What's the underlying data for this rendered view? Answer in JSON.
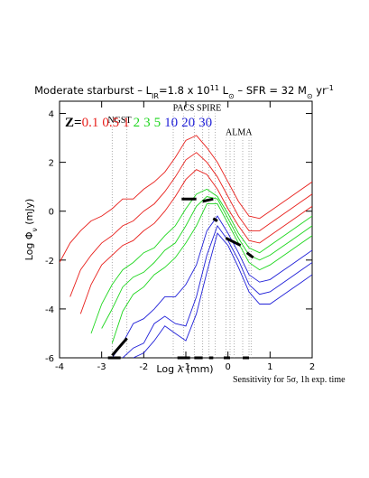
{
  "chart_data": {
    "type": "line",
    "title_parts": [
      {
        "text": "Moderate starburst – L",
        "pos": "base"
      },
      {
        "text": "IR",
        "pos": "sub"
      },
      {
        "text": "=1.8 x 10",
        "pos": "base"
      },
      {
        "text": "11",
        "pos": "sup"
      },
      {
        "text": " L",
        "pos": "base"
      },
      {
        "text": "⊙",
        "pos": "sub"
      },
      {
        "text": " – SFR = 32 M",
        "pos": "base"
      },
      {
        "text": "⊙",
        "pos": "sub"
      },
      {
        "text": " yr",
        "pos": "base"
      },
      {
        "text": "-1",
        "pos": "sup"
      }
    ],
    "ylabel_parts": [
      {
        "text": "Log Φ",
        "pos": "base"
      },
      {
        "text": "ν",
        "pos": "sub"
      },
      {
        "text": " (mJy)",
        "pos": "base"
      }
    ],
    "xlabel": "Log λ (mm)",
    "footnote": "Sensitivity for  5σ, 1h exp. time",
    "legend_prefix": "Z=",
    "xlim": [
      -4,
      2
    ],
    "ylim": [
      -6,
      4.5
    ],
    "xticks": [
      -4,
      -3,
      -2,
      -1,
      0,
      1,
      2
    ],
    "yticks": [
      -6,
      -4,
      -2,
      0,
      2,
      4
    ],
    "x": [
      -4,
      -3.75,
      -3.5,
      -3.25,
      -3,
      -2.75,
      -2.5,
      -2.25,
      -2,
      -1.75,
      -1.5,
      -1.25,
      -1,
      -0.75,
      -0.5,
      -0.25,
      0,
      0.25,
      0.5,
      0.75,
      1,
      1.25,
      1.5,
      1.75,
      2
    ],
    "series": [
      {
        "name": "0.1",
        "color": "#e8201c",
        "values": [
          -2.1,
          -1.3,
          -0.8,
          -0.4,
          -0.2,
          0.1,
          0.5,
          0.5,
          0.9,
          1.2,
          1.6,
          2.2,
          2.9,
          3.1,
          2.6,
          2.0,
          1.2,
          0.4,
          -0.2,
          -0.3,
          0.0,
          0.3,
          0.6,
          0.9,
          1.2
        ]
      },
      {
        "name": "0.5",
        "color": "#e8201c",
        "values": [
          null,
          -3.5,
          -2.4,
          -1.8,
          -1.3,
          -1.0,
          -0.6,
          -0.4,
          0.0,
          0.3,
          0.8,
          1.4,
          2.1,
          2.4,
          2.0,
          1.4,
          0.6,
          -0.2,
          -0.8,
          -0.8,
          -0.5,
          -0.2,
          0.1,
          0.4,
          0.7
        ]
      },
      {
        "name": "1",
        "color": "#e8201c",
        "values": [
          null,
          null,
          -4.2,
          -3.0,
          -2.2,
          -1.8,
          -1.4,
          -1.2,
          -0.8,
          -0.5,
          0.0,
          0.6,
          1.3,
          1.7,
          1.5,
          0.9,
          0.1,
          -0.6,
          -1.2,
          -1.3,
          -1.0,
          -0.7,
          -0.4,
          -0.1,
          0.2
        ]
      },
      {
        "name": "2",
        "color": "#1ed61e",
        "values": [
          null,
          null,
          null,
          -5.0,
          -3.8,
          -3.0,
          -2.4,
          -2.1,
          -1.7,
          -1.5,
          -1.0,
          -0.6,
          0.1,
          0.7,
          0.9,
          0.6,
          -0.1,
          -0.9,
          -1.5,
          -1.7,
          -1.4,
          -1.1,
          -0.8,
          -0.5,
          -0.2
        ]
      },
      {
        "name": "3",
        "color": "#1ed61e",
        "values": [
          null,
          null,
          null,
          null,
          -4.8,
          -4.0,
          -3.1,
          -2.7,
          -2.5,
          -2.1,
          -1.6,
          -1.3,
          -0.6,
          0.2,
          0.6,
          0.5,
          -0.3,
          -1.1,
          -1.8,
          -2.0,
          -1.8,
          -1.5,
          -1.2,
          -0.9,
          -0.6
        ]
      },
      {
        "name": "5",
        "color": "#1ed61e",
        "values": [
          null,
          null,
          null,
          null,
          null,
          -5.4,
          -4.1,
          -3.4,
          -3.1,
          -2.6,
          -2.3,
          -1.9,
          -1.3,
          -0.6,
          0.3,
          0.3,
          -0.5,
          -1.3,
          -2.1,
          -2.4,
          -2.2,
          -1.9,
          -1.6,
          -1.3,
          -1.0
        ]
      },
      {
        "name": "10",
        "color": "#2020d8",
        "values": [
          null,
          null,
          null,
          null,
          null,
          -6.0,
          -5.4,
          -4.6,
          -4.4,
          -4.0,
          -3.5,
          -3.5,
          -3.0,
          -2.2,
          -0.8,
          -0.2,
          -0.9,
          -1.7,
          -2.6,
          -2.9,
          -2.8,
          -2.5,
          -2.2,
          -1.9,
          -1.6
        ]
      },
      {
        "name": "20",
        "color": "#2020d8",
        "values": [
          null,
          null,
          null,
          null,
          null,
          null,
          -6.0,
          -5.6,
          -5.4,
          -4.6,
          -4.3,
          -4.6,
          -4.7,
          -3.5,
          -1.8,
          -0.6,
          -1.2,
          -2.0,
          -3.0,
          -3.4,
          -3.3,
          -3.0,
          -2.7,
          -2.4,
          -2.1
        ]
      },
      {
        "name": "30",
        "color": "#2020d8",
        "values": [
          null,
          null,
          null,
          null,
          null,
          null,
          null,
          -6.0,
          -5.8,
          -5.3,
          -4.7,
          -5.0,
          -5.3,
          -4.2,
          -2.5,
          -0.9,
          -1.4,
          -2.3,
          -3.3,
          -3.8,
          -3.8,
          -3.5,
          -3.2,
          -2.9,
          -2.6
        ]
      }
    ],
    "sensitivity": [
      {
        "x": [
          -2.75,
          -2.4
        ],
        "y": [
          -5.9,
          -5.2
        ]
      },
      {
        "x": [
          -2.85,
          -2.55
        ],
        "y": [
          -6,
          -6
        ]
      },
      {
        "x": [
          -1.2,
          -0.9
        ],
        "y": [
          -6,
          -6
        ]
      },
      {
        "x": [
          -0.8,
          -0.6
        ],
        "y": [
          -6,
          -6
        ]
      },
      {
        "x": [
          -0.45,
          -0.35
        ],
        "y": [
          -6,
          -6
        ]
      },
      {
        "x": [
          -0.1,
          0.05
        ],
        "y": [
          -6,
          -6
        ]
      },
      {
        "x": [
          0.35,
          0.5
        ],
        "y": [
          -6,
          -6
        ]
      },
      {
        "x": [
          -1.1,
          -0.75
        ],
        "y": [
          0.5,
          0.5
        ]
      },
      {
        "x": [
          -0.6,
          -0.35
        ],
        "y": [
          0.4,
          0.5
        ]
      },
      {
        "x": [
          -0.35,
          -0.25
        ],
        "y": [
          -0.3,
          -0.4
        ]
      },
      {
        "x": [
          -0.05,
          0.3
        ],
        "y": [
          -1.1,
          -1.4
        ]
      },
      {
        "x": [
          0.45,
          0.6
        ],
        "y": [
          -1.7,
          -1.9
        ]
      }
    ],
    "instruments": [
      {
        "label": "NGST",
        "lines": [
          -2.75,
          -2.4
        ],
        "ytop": 3.5
      },
      {
        "label": "PACS",
        "lines": [
          -1.3,
          -1.05,
          -0.8
        ],
        "ytop": 4.0
      },
      {
        "label": "SPIRE",
        "lines": [
          -0.6,
          -0.45,
          -0.3
        ],
        "ytop": 4.0
      },
      {
        "label": "ALMA",
        "lines": [
          -0.05,
          0.05,
          0.15,
          0.35,
          0.5,
          0.55
        ],
        "ytop": 3.0
      }
    ]
  }
}
